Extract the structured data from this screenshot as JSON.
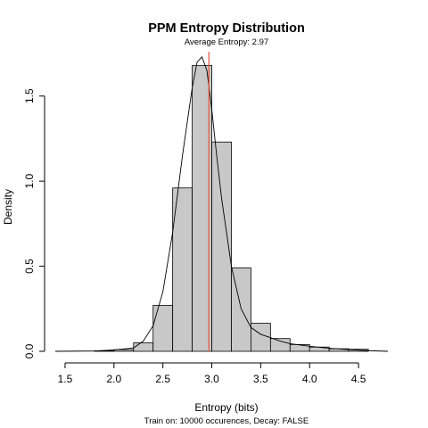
{
  "chart_data": {
    "type": "bar",
    "title": "PPM Entropy Distribution",
    "subtitle": "Average Entropy: 2.97",
    "xlabel": "Entropy (bits)",
    "ylabel": "Density",
    "caption": "Train on: 10000 occurences, Decay: FALSE",
    "xlim": [
      1.4,
      4.8
    ],
    "ylim": [
      0,
      1.75
    ],
    "x_ticks": [
      1.5,
      2.0,
      2.5,
      3.0,
      3.5,
      4.0,
      4.5
    ],
    "x_tick_labels": [
      "1.5",
      "2.0",
      "2.5",
      "3.0",
      "3.5",
      "4.0",
      "4.5"
    ],
    "y_ticks": [
      0.0,
      0.5,
      1.0,
      1.5
    ],
    "y_tick_labels": [
      "0.0",
      "0.5",
      "1.0",
      "1.5"
    ],
    "bins": [
      {
        "x0": 1.8,
        "x1": 2.0,
        "density": 0.003
      },
      {
        "x0": 2.0,
        "x1": 2.2,
        "density": 0.01
      },
      {
        "x0": 2.2,
        "x1": 2.4,
        "density": 0.05
      },
      {
        "x0": 2.4,
        "x1": 2.6,
        "density": 0.27
      },
      {
        "x0": 2.6,
        "x1": 2.8,
        "density": 0.96
      },
      {
        "x0": 2.8,
        "x1": 3.0,
        "density": 1.68
      },
      {
        "x0": 3.0,
        "x1": 3.2,
        "density": 1.23
      },
      {
        "x0": 3.2,
        "x1": 3.4,
        "density": 0.49
      },
      {
        "x0": 3.4,
        "x1": 3.6,
        "density": 0.165
      },
      {
        "x0": 3.6,
        "x1": 3.8,
        "density": 0.075
      },
      {
        "x0": 3.8,
        "x1": 4.0,
        "density": 0.04
      },
      {
        "x0": 4.0,
        "x1": 4.2,
        "density": 0.025
      },
      {
        "x0": 4.2,
        "x1": 4.4,
        "density": 0.015
      },
      {
        "x0": 4.4,
        "x1": 4.6,
        "density": 0.012
      }
    ],
    "density_curve": {
      "x": [
        1.4,
        1.8,
        2.0,
        2.2,
        2.3,
        2.4,
        2.5,
        2.6,
        2.7,
        2.8,
        2.85,
        2.9,
        2.95,
        3.0,
        3.05,
        3.1,
        3.2,
        3.3,
        3.4,
        3.5,
        3.6,
        3.7,
        3.8,
        4.0,
        4.2,
        4.4,
        4.6,
        4.8
      ],
      "y": [
        0.0,
        0.002,
        0.008,
        0.02,
        0.06,
        0.15,
        0.35,
        0.7,
        1.15,
        1.55,
        1.7,
        1.73,
        1.65,
        1.42,
        1.15,
        0.9,
        0.5,
        0.25,
        0.14,
        0.1,
        0.08,
        0.06,
        0.045,
        0.03,
        0.018,
        0.01,
        0.004,
        0.0
      ]
    },
    "mean": 2.97,
    "mean_line_color": "#e8503a",
    "bar_color": "#c8c8c8",
    "grid": false
  }
}
